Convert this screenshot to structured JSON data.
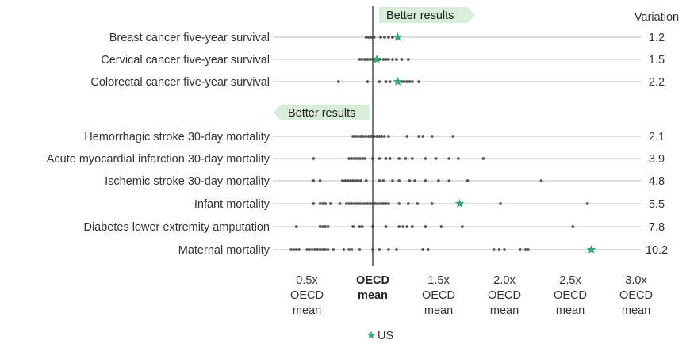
{
  "chart_data": {
    "type": "scatter",
    "variation_header": "Variation",
    "better_results_label": "Better results",
    "legend": {
      "label": "US",
      "symbol": "star-icon",
      "color": "#2eaa6b"
    },
    "colors": {
      "dot": "#555555",
      "us": "#2eaa6b",
      "rule": "#bdbdbd",
      "mean_line": "#333333",
      "banner": "#d8eed9"
    },
    "x_axis": {
      "ticks": [
        {
          "value": 0.5,
          "lines": [
            "0.5x",
            "OECD",
            "mean"
          ],
          "bold": false
        },
        {
          "value": 1.0,
          "lines": [
            "OECD",
            "mean"
          ],
          "bold": true
        },
        {
          "value": 1.5,
          "lines": [
            "1.5x",
            "OECD",
            "mean"
          ],
          "bold": false
        },
        {
          "value": 2.0,
          "lines": [
            "2.0x",
            "OECD",
            "mean"
          ],
          "bold": false
        },
        {
          "value": 2.5,
          "lines": [
            "2.5x",
            "OECD",
            "mean"
          ],
          "bold": false
        },
        {
          "value": 3.0,
          "lines": [
            "3.0x",
            "OECD",
            "mean"
          ],
          "bold": false
        }
      ]
    },
    "groups": [
      {
        "direction": "right",
        "rows": [
          {
            "label": "Breast cancer five-year survival",
            "variation": "1.2",
            "us": 1.19,
            "points": [
              0.95,
              0.97,
              0.99,
              1.01,
              1.06,
              1.09,
              1.12,
              1.15
            ]
          },
          {
            "label": "Cervical cancer five-year survival",
            "variation": "1.5",
            "us": 1.03,
            "points": [
              0.9,
              0.92,
              0.94,
              0.96,
              0.98,
              1.0,
              1.02,
              1.05,
              1.08,
              1.1,
              1.12,
              1.15,
              1.18,
              1.22,
              1.27
            ]
          },
          {
            "label": "Colorectal cancer five-year survival",
            "variation": "2.2",
            "us": 1.19,
            "points": [
              0.74,
              0.96,
              1.05,
              1.1,
              1.13,
              1.22,
              1.24,
              1.26,
              1.28,
              1.3,
              1.35
            ]
          }
        ]
      },
      {
        "direction": "left",
        "rows": [
          {
            "label": "Hemorrhagic stroke 30-day mortality",
            "variation": "2.1",
            "us": null,
            "points": [
              0.85,
              0.87,
              0.89,
              0.91,
              0.93,
              0.95,
              0.97,
              0.99,
              1.01,
              1.03,
              1.05,
              1.07,
              1.09,
              1.12,
              1.26,
              1.35,
              1.38,
              1.45,
              1.61
            ]
          },
          {
            "label": "Acute myocardial infarction 30-day mortality",
            "variation": "3.9",
            "us": null,
            "points": [
              0.55,
              0.82,
              0.84,
              0.86,
              0.88,
              0.9,
              0.92,
              0.94,
              1.0,
              1.05,
              1.1,
              1.13,
              1.2,
              1.25,
              1.3,
              1.4,
              1.48,
              1.58,
              1.65,
              1.84
            ]
          },
          {
            "label": "Ischemic stroke 30-day mortality",
            "variation": "4.8",
            "us": null,
            "points": [
              0.55,
              0.6,
              0.77,
              0.79,
              0.81,
              0.83,
              0.85,
              0.87,
              0.89,
              0.91,
              0.95,
              1.05,
              1.08,
              1.15,
              1.2,
              1.28,
              1.32,
              1.4,
              1.5,
              1.58,
              1.72,
              2.28
            ]
          },
          {
            "label": "Infant mortality",
            "variation": "5.5",
            "us": 1.66,
            "points": [
              0.55,
              0.6,
              0.62,
              0.64,
              0.68,
              0.75,
              0.8,
              0.82,
              0.84,
              0.86,
              0.88,
              0.9,
              0.92,
              0.94,
              0.96,
              0.98,
              1.0,
              1.02,
              1.04,
              1.06,
              1.08,
              1.1,
              1.12,
              1.2,
              1.27,
              1.34,
              1.45,
              1.97,
              2.63
            ]
          },
          {
            "label": "Diabetes lower extremity amputation",
            "variation": "7.8",
            "us": null,
            "points": [
              0.42,
              0.6,
              0.62,
              0.64,
              0.66,
              0.85,
              0.9,
              0.92,
              1.0,
              1.1,
              1.2,
              1.23,
              1.26,
              1.3,
              1.4,
              1.52,
              1.68,
              2.52
            ]
          },
          {
            "label": "Maternal mortality",
            "variation": "10.2",
            "us": 2.66,
            "points": [
              0.38,
              0.4,
              0.42,
              0.44,
              0.5,
              0.52,
              0.54,
              0.56,
              0.58,
              0.6,
              0.62,
              0.64,
              0.66,
              0.7,
              0.78,
              0.82,
              0.84,
              0.9,
              1.0,
              1.05,
              1.12,
              1.18,
              1.38,
              1.42,
              1.92,
              1.96,
              2.0,
              2.12,
              2.16,
              2.18
            ]
          }
        ]
      }
    ]
  }
}
